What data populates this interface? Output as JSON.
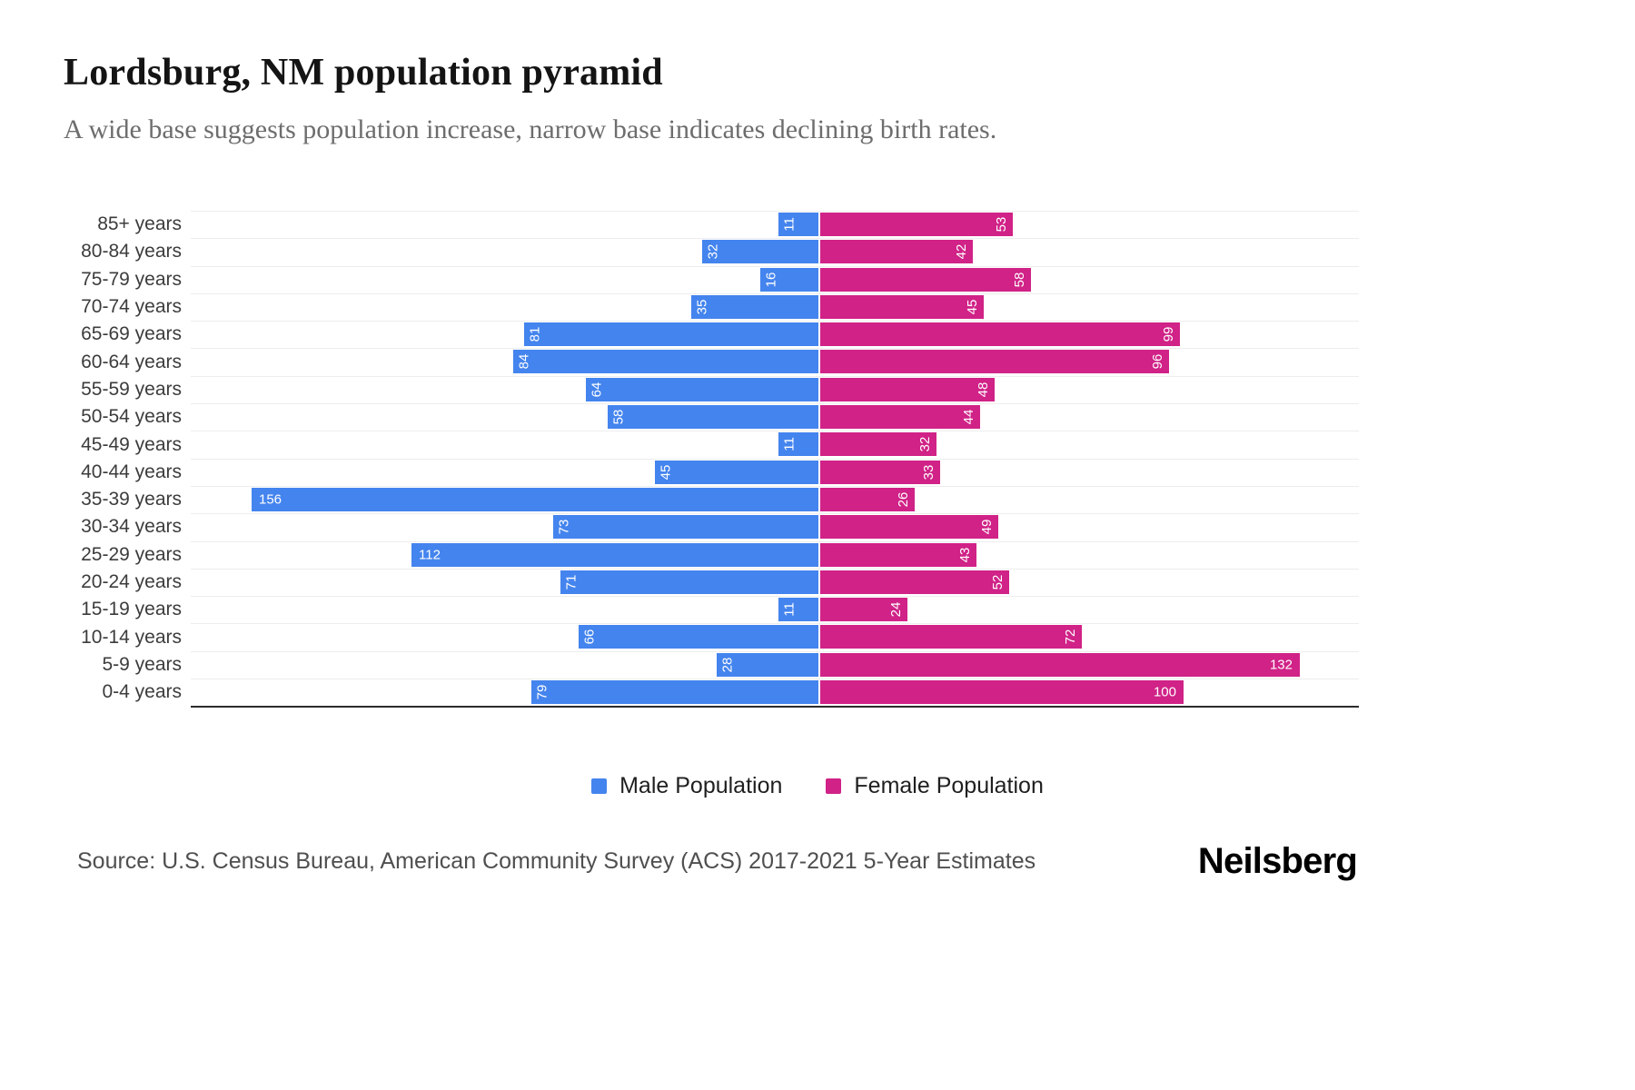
{
  "header": {
    "title": "Lordsburg, NM population pyramid",
    "subtitle": "A wide base suggests population increase, narrow base indicates declining birth rates."
  },
  "chart_data": {
    "type": "bar",
    "variant": "population-pyramid",
    "title": "Lordsburg, NM population pyramid",
    "subtitle": "A wide base suggests population increase, narrow base indicates declining birth rates.",
    "categories": [
      "85+ years",
      "80-84 years",
      "75-79 years",
      "70-74 years",
      "65-69 years",
      "60-64 years",
      "55-59 years",
      "50-54 years",
      "45-49 years",
      "40-44 years",
      "35-39 years",
      "30-34 years",
      "25-29 years",
      "20-24 years",
      "15-19 years",
      "10-14 years",
      "5-9 years",
      "0-4 years"
    ],
    "series": [
      {
        "name": "Male Population",
        "side": "left",
        "color": "#4484ee",
        "values": [
          11,
          32,
          16,
          35,
          81,
          84,
          64,
          58,
          11,
          45,
          156,
          73,
          112,
          71,
          11,
          66,
          28,
          79
        ]
      },
      {
        "name": "Female Population",
        "side": "right",
        "color": "#d02287",
        "values": [
          53,
          42,
          58,
          45,
          99,
          96,
          48,
          44,
          32,
          33,
          26,
          49,
          43,
          52,
          24,
          72,
          132,
          100
        ]
      }
    ],
    "value_labels": "inside-end",
    "grid": "horizontal-light",
    "legend_position": "bottom-center"
  },
  "legend": {
    "male": "Male Population",
    "female": "Female Population"
  },
  "footer": {
    "source": "Source: U.S. Census Bureau, American Community Survey (ACS) 2017-2021 5-Year Estimates",
    "brand": "Neilsberg"
  },
  "colors": {
    "male": "#4484ee",
    "female": "#d02287",
    "grid": "#ededed",
    "axis": "#2b2b2b"
  }
}
